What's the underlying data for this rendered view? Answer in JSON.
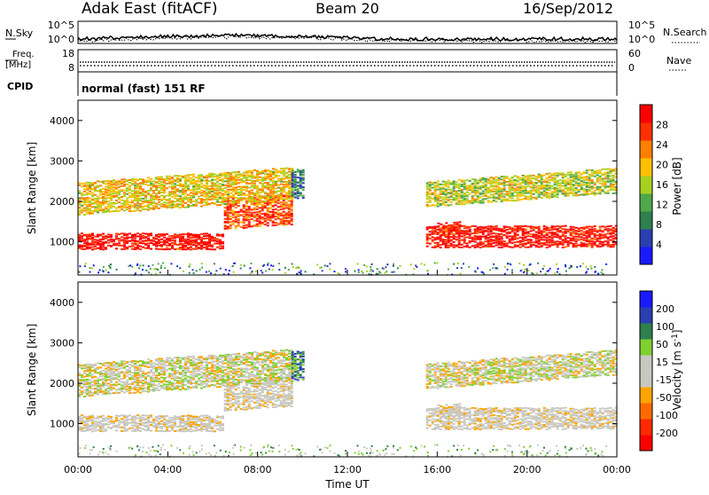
{
  "header": {
    "station": "Adak East (fitACF)",
    "beam": "Beam 20",
    "date": "16/Sep/2012"
  },
  "noise_panel": {
    "left_label": "N.Sky",
    "right_label": "N.Search",
    "left_ticks": [
      "10^5",
      "10^0"
    ],
    "right_ticks": [
      "10^5",
      "10^0"
    ]
  },
  "freq_panel": {
    "left_label_1": "Freq.",
    "left_label_2": "[MHz]",
    "right_label": "Nave",
    "left_ticks": [
      "18",
      "8"
    ],
    "right_ticks": [
      "60",
      "0"
    ]
  },
  "cpid": {
    "label": "CPID",
    "value": "normal (fast) 151 RF"
  },
  "colors": {
    "power_scale": [
      "#1a1aff",
      "#2a3fb0",
      "#2f7f4f",
      "#4fa84a",
      "#a8d020",
      "#ffc000",
      "#ff8000",
      "#ff3000",
      "#ff0000"
    ],
    "velocity_scale": [
      "#1a1aff",
      "#2a3fb0",
      "#2f7f4f",
      "#7fd030",
      "#c8c8bf",
      "#c8c8bf",
      "#ffa500",
      "#ff6a00",
      "#ff2a00",
      "#ff0000"
    ]
  },
  "chart_data": [
    {
      "type": "heatmap",
      "name": "Power",
      "ylabel": "Slant Range [km]",
      "yticks": [
        "1000",
        "2000",
        "3000",
        "4000"
      ],
      "ylim": [
        180,
        4500
      ],
      "xlim": [
        "00:00",
        "24:00"
      ],
      "colorbar_label": "Power [dB]",
      "colorbar_ticks": [
        "28",
        "24",
        "20",
        "16",
        "12",
        "8",
        "4"
      ],
      "colorbar_range": [
        0,
        30
      ],
      "bands": [
        {
          "t": [
            0,
            6.5
          ],
          "range": [
            850,
            1250
          ],
          "db": 28
        },
        {
          "t": [
            6.5,
            9.5
          ],
          "range": [
            1350,
            2100
          ],
          "db": 24
        },
        {
          "t": [
            0,
            9.5
          ],
          "range": [
            1700,
            2500
          ],
          "db": 18
        },
        {
          "t": [
            9.5,
            10
          ],
          "range": [
            2100,
            2800
          ],
          "db": 8
        },
        {
          "t": [
            15.5,
            24
          ],
          "range": [
            900,
            1400
          ],
          "db": 28
        },
        {
          "t": [
            15.5,
            24
          ],
          "range": [
            1900,
            2500
          ],
          "db": 16
        },
        {
          "t": [
            16,
            17
          ],
          "range": [
            1200,
            1500
          ],
          "db": 26
        }
      ]
    },
    {
      "type": "heatmap",
      "name": "Velocity",
      "ylabel": "Slant Range [km]",
      "yticks": [
        "1000",
        "2000",
        "3000",
        "4000"
      ],
      "ylim": [
        180,
        4500
      ],
      "xlabel": "Time UT",
      "xticks": [
        "00:00",
        "04:00",
        "08:00",
        "12:00",
        "16:00",
        "20:00",
        "00:00"
      ],
      "xlim": [
        "00:00",
        "24:00"
      ],
      "colorbar_label": "Velocity [m s^-1]",
      "colorbar_ticks": [
        "200",
        "100",
        "50",
        "15",
        "-15",
        "-50",
        "-100",
        "-200"
      ],
      "colorbar_range": [
        -250,
        250
      ]
    }
  ]
}
